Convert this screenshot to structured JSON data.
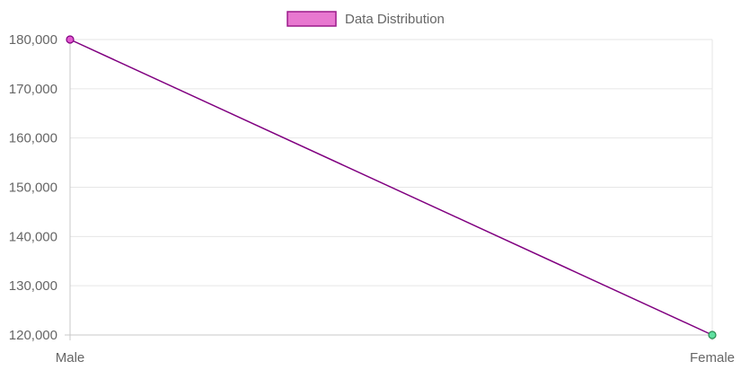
{
  "chart_data": {
    "type": "line",
    "categories": [
      "Male",
      "Female"
    ],
    "series": [
      {
        "name": "Data Distribution",
        "values": [
          180000,
          120000
        ],
        "line_color": "#800080",
        "legend_fill": "#e878d0",
        "legend_border": "#9c1a8a",
        "point_colors": [
          "#e35ad0",
          "#5fe0a0"
        ],
        "point_borders": [
          "#800080",
          "#2a8a50"
        ]
      }
    ],
    "yticks": [
      "120,000",
      "130,000",
      "140,000",
      "150,000",
      "160,000",
      "170,000",
      "180,000"
    ],
    "ylim": [
      120000,
      180000
    ],
    "grid": true,
    "legend_position": "top-center"
  }
}
